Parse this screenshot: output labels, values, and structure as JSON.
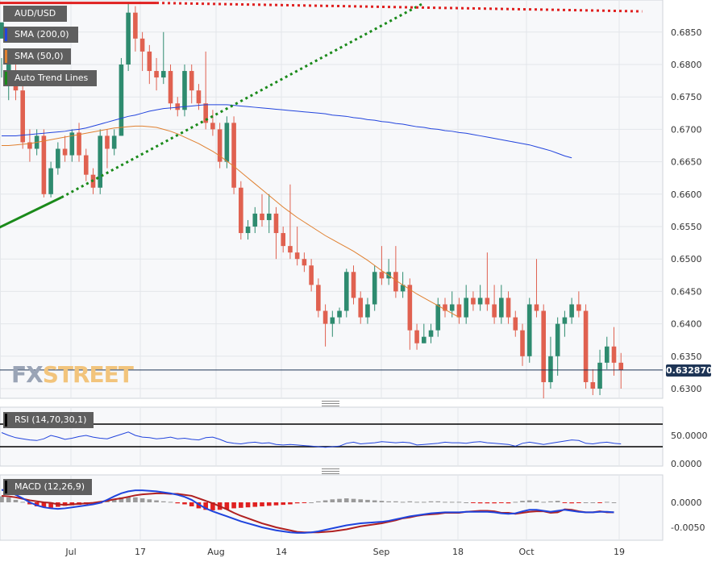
{
  "chart_data": [
    {
      "type": "candlestick",
      "title": "AUD/USD",
      "legend": [
        {
          "label": "AUD/USD",
          "color": "#5f5f5f"
        },
        {
          "label": "SMA (200,0)",
          "color": "#2244dd"
        },
        {
          "label": "SMA (50,0)",
          "color": "#e08030"
        },
        {
          "label": "Auto Trend Lines",
          "color": "#1a8a1a"
        }
      ],
      "last_price": "0.632870",
      "y_ticks": [
        "0.6850",
        "0.6800",
        "0.6750",
        "0.6700",
        "0.6650",
        "0.6600",
        "0.6550",
        "0.6500",
        "0.6450",
        "0.6400",
        "0.6350",
        "0.6300"
      ],
      "x_ticks": [
        "Jul",
        "17",
        "Aug",
        "14",
        "Sep",
        "18",
        "Oct",
        "19"
      ],
      "ylim": [
        0.6285,
        0.6895
      ],
      "colors": {
        "up": "#2e8b6f",
        "down": "#e06150",
        "sma200": "#2244dd",
        "sma50": "#e08030",
        "trend_up": "#1a8a1a",
        "trend_down": "#e02020"
      },
      "candles": [
        [
          0.684,
          0.6865,
          0.681,
          0.678
        ],
        [
          0.679,
          0.68,
          0.6825,
          0.6745
        ],
        [
          0.678,
          0.676,
          0.6805,
          0.6745
        ],
        [
          0.676,
          0.668,
          0.6775,
          0.667
        ],
        [
          0.668,
          0.667,
          0.67,
          0.665
        ],
        [
          0.667,
          0.669,
          0.67,
          0.666
        ],
        [
          0.669,
          0.66,
          0.67,
          0.6595
        ],
        [
          0.66,
          0.664,
          0.665,
          0.6595
        ],
        [
          0.664,
          0.667,
          0.668,
          0.663
        ],
        [
          0.667,
          0.666,
          0.669,
          0.665
        ],
        [
          0.666,
          0.6695,
          0.67,
          0.665
        ],
        [
          0.6695,
          0.666,
          0.671,
          0.665
        ],
        [
          0.666,
          0.663,
          0.667,
          0.662
        ],
        [
          0.663,
          0.661,
          0.664,
          0.66
        ],
        [
          0.661,
          0.669,
          0.67,
          0.66
        ],
        [
          0.669,
          0.667,
          0.67,
          0.664
        ],
        [
          0.667,
          0.669,
          0.67,
          0.666
        ],
        [
          0.669,
          0.68,
          0.681,
          0.669
        ],
        [
          0.68,
          0.688,
          0.6895,
          0.679
        ],
        [
          0.688,
          0.684,
          0.689,
          0.682
        ],
        [
          0.684,
          0.682,
          0.685,
          0.679
        ],
        [
          0.682,
          0.679,
          0.683,
          0.677
        ],
        [
          0.679,
          0.678,
          0.681,
          0.676
        ],
        [
          0.678,
          0.679,
          0.685,
          0.677
        ],
        [
          0.679,
          0.674,
          0.68,
          0.673
        ],
        [
          0.674,
          0.673,
          0.675,
          0.672
        ],
        [
          0.673,
          0.679,
          0.68,
          0.672
        ],
        [
          0.679,
          0.676,
          0.68,
          0.674
        ],
        [
          0.676,
          0.674,
          0.677,
          0.673
        ],
        [
          0.674,
          0.671,
          0.682,
          0.67
        ],
        [
          0.671,
          0.67,
          0.673,
          0.669
        ],
        [
          0.67,
          0.665,
          0.671,
          0.664
        ],
        [
          0.665,
          0.671,
          0.672,
          0.664
        ],
        [
          0.671,
          0.661,
          0.672,
          0.66
        ],
        [
          0.661,
          0.654,
          0.662,
          0.653
        ],
        [
          0.654,
          0.655,
          0.656,
          0.653
        ],
        [
          0.655,
          0.657,
          0.658,
          0.654
        ],
        [
          0.657,
          0.656,
          0.66,
          0.655
        ],
        [
          0.656,
          0.657,
          0.66,
          0.654
        ],
        [
          0.657,
          0.654,
          0.658,
          0.65
        ],
        [
          0.654,
          0.652,
          0.655,
          0.651
        ],
        [
          0.652,
          0.651,
          0.6615,
          0.65
        ],
        [
          0.651,
          0.65,
          0.655,
          0.649
        ],
        [
          0.65,
          0.649,
          0.651,
          0.648
        ],
        [
          0.649,
          0.646,
          0.65,
          0.645
        ],
        [
          0.646,
          0.642,
          0.647,
          0.641
        ],
        [
          0.642,
          0.64,
          0.643,
          0.6365
        ],
        [
          0.64,
          0.641,
          0.642,
          0.638
        ],
        [
          0.641,
          0.642,
          0.6425,
          0.64
        ],
        [
          0.642,
          0.648,
          0.6485,
          0.641
        ],
        [
          0.648,
          0.644,
          0.649,
          0.643
        ],
        [
          0.644,
          0.641,
          0.645,
          0.64
        ],
        [
          0.641,
          0.643,
          0.644,
          0.64
        ],
        [
          0.643,
          0.648,
          0.649,
          0.642
        ],
        [
          0.648,
          0.647,
          0.652,
          0.646
        ],
        [
          0.647,
          0.648,
          0.65,
          0.646
        ],
        [
          0.648,
          0.645,
          0.652,
          0.644
        ],
        [
          0.645,
          0.646,
          0.648,
          0.644
        ],
        [
          0.646,
          0.639,
          0.647,
          0.636
        ],
        [
          0.639,
          0.637,
          0.64,
          0.636
        ],
        [
          0.637,
          0.638,
          0.64,
          0.637
        ],
        [
          0.638,
          0.639,
          0.64,
          0.637
        ],
        [
          0.639,
          0.643,
          0.644,
          0.638
        ],
        [
          0.643,
          0.642,
          0.644,
          0.641
        ],
        [
          0.642,
          0.643,
          0.645,
          0.641
        ],
        [
          0.643,
          0.641,
          0.644,
          0.64
        ],
        [
          0.641,
          0.644,
          0.646,
          0.64
        ],
        [
          0.644,
          0.643,
          0.645,
          0.642
        ],
        [
          0.643,
          0.644,
          0.646,
          0.642
        ],
        [
          0.644,
          0.643,
          0.651,
          0.642
        ],
        [
          0.643,
          0.641,
          0.646,
          0.64
        ],
        [
          0.641,
          0.644,
          0.646,
          0.64
        ],
        [
          0.644,
          0.641,
          0.645,
          0.64
        ],
        [
          0.641,
          0.639,
          0.642,
          0.638
        ],
        [
          0.639,
          0.635,
          0.64,
          0.6335
        ],
        [
          0.635,
          0.643,
          0.644,
          0.634
        ],
        [
          0.643,
          0.642,
          0.65,
          0.641
        ],
        [
          0.642,
          0.631,
          0.643,
          0.6285
        ],
        [
          0.631,
          0.635,
          0.638,
          0.63
        ],
        [
          0.635,
          0.64,
          0.641,
          0.632
        ],
        [
          0.64,
          0.641,
          0.642,
          0.638
        ],
        [
          0.641,
          0.643,
          0.644,
          0.64
        ],
        [
          0.643,
          0.642,
          0.645,
          0.641
        ],
        [
          0.642,
          0.631,
          0.643,
          0.63
        ],
        [
          0.631,
          0.63,
          0.633,
          0.629
        ],
        [
          0.63,
          0.634,
          0.636,
          0.629
        ],
        [
          0.634,
          0.6365,
          0.638,
          0.633
        ],
        [
          0.6365,
          0.634,
          0.6395,
          0.632
        ],
        [
          0.634,
          0.6329,
          0.6355,
          0.63
        ]
      ],
      "sma200": [
        0.669,
        0.669,
        0.669,
        0.6691,
        0.6692,
        0.6693,
        0.6694,
        0.6695,
        0.6696,
        0.6697,
        0.6699,
        0.67,
        0.6702,
        0.6705,
        0.6708,
        0.6711,
        0.6714,
        0.6717,
        0.672,
        0.6722,
        0.6725,
        0.6728,
        0.673,
        0.6732,
        0.6733,
        0.6734,
        0.6735,
        0.6736,
        0.6737,
        0.6738,
        0.6738,
        0.6738,
        0.6738,
        0.6737,
        0.6736,
        0.6735,
        0.6734,
        0.6733,
        0.6732,
        0.6731,
        0.673,
        0.6729,
        0.6728,
        0.6727,
        0.6726,
        0.6725,
        0.6724,
        0.6722,
        0.6721,
        0.672,
        0.6718,
        0.6717,
        0.6715,
        0.6714,
        0.6712,
        0.6711,
        0.6709,
        0.6708,
        0.6706,
        0.6704,
        0.6703,
        0.6701,
        0.67,
        0.6698,
        0.6697,
        0.6695,
        0.6694,
        0.6692,
        0.669,
        0.6688,
        0.6686,
        0.6684,
        0.6682,
        0.668,
        0.6678,
        0.6676,
        0.6673,
        0.667,
        0.6667,
        0.6663,
        0.6659,
        0.6656
      ],
      "sma50": [
        0.6675,
        0.6675,
        0.6676,
        0.6677,
        0.6678,
        0.668,
        0.6682,
        0.6684,
        0.6686,
        0.6688,
        0.669,
        0.6692,
        0.6694,
        0.6696,
        0.6698,
        0.67,
        0.6702,
        0.6703,
        0.6704,
        0.6705,
        0.6705,
        0.6704,
        0.6703,
        0.67,
        0.6697,
        0.6693,
        0.6688,
        0.6683,
        0.6678,
        0.6672,
        0.6666,
        0.6659,
        0.6651,
        0.6643,
        0.6634,
        0.6625,
        0.6616,
        0.6607,
        0.6598,
        0.6589,
        0.658,
        0.6572,
        0.6564,
        0.6557,
        0.655,
        0.6543,
        0.6536,
        0.653,
        0.6524,
        0.6518,
        0.6512,
        0.6505,
        0.6498,
        0.649,
        0.6482,
        0.6475,
        0.6467,
        0.646,
        0.6453,
        0.6446,
        0.644,
        0.6434,
        0.6428,
        0.6422,
        0.6416,
        0.641
      ],
      "trendlines": [
        {
          "from": [
            -1,
            0.6545
          ],
          "to": [
            8.5,
            0.6595
          ],
          "style": "solid",
          "color": "#1a8a1a"
        },
        {
          "from": [
            8.5,
            0.6595
          ],
          "to": [
            60,
            0.6895
          ],
          "style": "dotted",
          "color": "#1a8a1a"
        },
        {
          "from": [
            -1,
            0.6895
          ],
          "to": [
            22,
            0.6895
          ],
          "style": "solid",
          "color": "#e02020"
        },
        {
          "from": [
            22,
            0.6895
          ],
          "to": [
            91,
            0.6882
          ],
          "style": "dotted",
          "color": "#e02020"
        }
      ]
    },
    {
      "type": "line",
      "title": "RSI (14,70,30,1)",
      "y_ticks": [
        "50.0000",
        "0.0000"
      ],
      "ylim": [
        0,
        100
      ],
      "levels": [
        70,
        30
      ],
      "values": [
        55,
        50,
        46,
        44,
        42,
        41,
        44,
        50,
        47,
        43,
        45,
        48,
        50,
        47,
        45,
        44,
        48,
        52,
        56,
        50,
        47,
        46,
        44,
        45,
        47,
        44,
        45,
        43,
        42,
        46,
        47,
        43,
        38,
        36,
        35,
        37,
        38,
        36,
        37,
        34,
        33,
        34,
        33,
        32,
        31,
        30,
        29,
        30,
        31,
        36,
        38,
        35,
        36,
        37,
        39,
        38,
        37,
        38,
        37,
        33,
        34,
        35,
        36,
        38,
        37,
        37,
        36,
        38,
        39,
        37,
        36,
        35,
        34,
        31,
        36,
        38,
        36,
        34,
        36,
        38,
        40,
        42,
        41,
        36,
        35,
        37,
        38,
        36,
        35
      ]
    },
    {
      "type": "bar+line",
      "title": "MACD (12,26,9)",
      "y_ticks": [
        "0.0000",
        "-0.0050"
      ],
      "ylim": [
        -0.0066,
        0.0035
      ],
      "histogram": [
        0.0012,
        0.001,
        0.0005,
        0.0001,
        -0.0004,
        -0.0008,
        -0.001,
        -0.0011,
        -0.0009,
        -0.0007,
        -0.0006,
        -0.0005,
        -0.0004,
        -0.0003,
        -0.0002,
        0.0002,
        0.0006,
        0.001,
        0.0011,
        0.001,
        0.0008,
        0.0006,
        0.0004,
        0.0002,
        0.0001,
        -0.0002,
        -0.0004,
        -0.0008,
        -0.0012,
        -0.0015,
        -0.0016,
        -0.0015,
        -0.0014,
        -0.0012,
        -0.0011,
        -0.001,
        -0.0009,
        -0.0008,
        -0.0007,
        -0.0006,
        -0.0005,
        -0.0004,
        -0.0002,
        -0.0001,
        0.0,
        0.0002,
        0.0004,
        0.0006,
        0.0007,
        0.0008,
        0.0007,
        0.0006,
        0.0005,
        0.0004,
        0.0003,
        0.0002,
        0.0002,
        0.0001,
        0.0002,
        0.0001,
        0.0001,
        0.0002,
        0.0002,
        0.0001,
        0.0001,
        0.0001,
        0.0,
        -0.0001,
        -0.0002,
        -0.0002,
        -0.0002,
        -0.0001,
        -0.0002,
        0.0001,
        0.0003,
        0.0004,
        0.0003,
        0.0001,
        0.0002,
        0.0003,
        -0.0001,
        -0.0002,
        -0.0001,
        0.0,
        0.0,
        -0.0001,
        0.0001,
        0.0
      ],
      "macd": [
        0.0025,
        0.0022,
        0.0015,
        0.0008,
        0.0,
        -0.0006,
        -0.001,
        -0.0012,
        -0.0013,
        -0.0012,
        -0.001,
        -0.0008,
        -0.0006,
        -0.0004,
        -0.0001,
        0.0005,
        0.0012,
        0.0018,
        0.0022,
        0.0024,
        0.0024,
        0.0023,
        0.0022,
        0.002,
        0.0018,
        0.0015,
        0.0011,
        0.0005,
        -0.0004,
        -0.0012,
        -0.0018,
        -0.0023,
        -0.0028,
        -0.0033,
        -0.0038,
        -0.0042,
        -0.0046,
        -0.005,
        -0.0053,
        -0.0056,
        -0.0058,
        -0.006,
        -0.0061,
        -0.0061,
        -0.006,
        -0.0058,
        -0.0055,
        -0.0052,
        -0.0049,
        -0.0046,
        -0.0044,
        -0.0042,
        -0.0041,
        -0.004,
        -0.0039,
        -0.0037,
        -0.0034,
        -0.0031,
        -0.0028,
        -0.0026,
        -0.0024,
        -0.0022,
        -0.0021,
        -0.002,
        -0.002,
        -0.002,
        -0.0019,
        -0.0019,
        -0.0019,
        -0.0019,
        -0.002,
        -0.0022,
        -0.0023,
        -0.0022,
        -0.0018,
        -0.0015,
        -0.0015,
        -0.0017,
        -0.0019,
        -0.0017,
        -0.0015,
        -0.0017,
        -0.0019,
        -0.002,
        -0.002,
        -0.0019,
        -0.0019,
        -0.002
      ],
      "signal": [
        0.0013,
        0.0012,
        0.001,
        0.0007,
        0.0004,
        0.0002,
        0.0,
        -0.0001,
        -0.0004,
        -0.0005,
        -0.0004,
        -0.0003,
        -0.0002,
        -0.0001,
        0.0001,
        0.0003,
        0.0006,
        0.0008,
        0.0011,
        0.0014,
        0.0016,
        0.0017,
        0.0018,
        0.0018,
        0.0017,
        0.0017,
        0.0015,
        0.0013,
        0.0008,
        0.0003,
        -0.0002,
        -0.0008,
        -0.0014,
        -0.0021,
        -0.0027,
        -0.0032,
        -0.0037,
        -0.0042,
        -0.0046,
        -0.005,
        -0.0053,
        -0.0056,
        -0.0059,
        -0.006,
        -0.006,
        -0.006,
        -0.0059,
        -0.0058,
        -0.0056,
        -0.0054,
        -0.0051,
        -0.0048,
        -0.0046,
        -0.0044,
        -0.0042,
        -0.0039,
        -0.0036,
        -0.0032,
        -0.003,
        -0.0027,
        -0.0025,
        -0.0024,
        -0.0023,
        -0.0021,
        -0.0021,
        -0.0021,
        -0.0019,
        -0.0018,
        -0.0017,
        -0.0017,
        -0.0018,
        -0.0021,
        -0.0021,
        -0.0023,
        -0.0021,
        -0.0019,
        -0.0018,
        -0.0018,
        -0.0021,
        -0.002,
        -0.0014,
        -0.0015,
        -0.0018,
        -0.002,
        -0.002,
        -0.0018,
        -0.002,
        -0.002
      ]
    }
  ],
  "branding": {
    "logo_left": "FX",
    "logo_right": "STREET"
  }
}
